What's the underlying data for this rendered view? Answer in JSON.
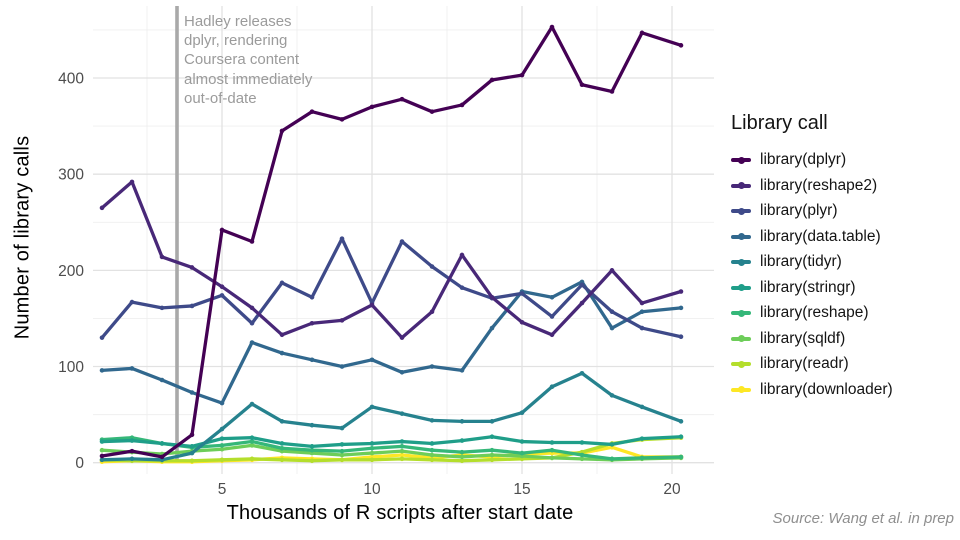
{
  "y_axis": {
    "title": "Number of library calls",
    "ticks": [
      0,
      100,
      200,
      300,
      400
    ]
  },
  "x_axis": {
    "title": "Thousands of R scripts after start date",
    "ticks": [
      5,
      10,
      15,
      20
    ]
  },
  "legend": {
    "title": "Library call",
    "position": "right"
  },
  "annotation": {
    "text": "Hadley releases\ndplyr, rendering\nCoursera content\nalmost immediately\nout-of-date",
    "x": 3.5,
    "line_color": "#a9a9a9",
    "text_color": "#9b9b9b"
  },
  "source": {
    "text": "Source: Wang et al. in prep"
  },
  "chart_data": {
    "type": "line",
    "title": "",
    "xlabel": "Thousands of R scripts after start date",
    "ylabel": "Number of library calls",
    "xlim": [
      0.7,
      21.4
    ],
    "ylim": [
      -12,
      475
    ],
    "grid": true,
    "legend_position": "right",
    "annotation_line_x": 3.5,
    "x": [
      1,
      2,
      3,
      4,
      5,
      6,
      7,
      8,
      9,
      10,
      11,
      12,
      13,
      14,
      15,
      16,
      17,
      18,
      19,
      20.3
    ],
    "series": [
      {
        "name": "library(dplyr)",
        "color": "#440154",
        "values": [
          7,
          12,
          6,
          29,
          242,
          230,
          345,
          365,
          357,
          370,
          378,
          365,
          372,
          398,
          403,
          453,
          393,
          386,
          447,
          434
        ]
      },
      {
        "name": "library(reshape2)",
        "color": "#482878",
        "values": [
          265,
          292,
          214,
          203,
          183,
          161,
          133,
          145,
          148,
          164,
          130,
          157,
          216,
          172,
          146,
          133,
          166,
          200,
          166,
          178
        ]
      },
      {
        "name": "library(plyr)",
        "color": "#3e4a89",
        "values": [
          130,
          167,
          161,
          163,
          174,
          145,
          187,
          172,
          233,
          166,
          230,
          204,
          182,
          171,
          176,
          152,
          185,
          157,
          140,
          131
        ]
      },
      {
        "name": "library(data.table)",
        "color": "#31688e",
        "values": [
          96,
          98,
          86,
          73,
          62,
          125,
          114,
          107,
          100,
          107,
          94,
          100,
          96,
          140,
          178,
          172,
          188,
          140,
          157,
          161
        ]
      },
      {
        "name": "library(tidyr)",
        "color": "#26828e",
        "values": [
          3,
          4,
          3,
          10,
          35,
          61,
          43,
          39,
          36,
          58,
          51,
          44,
          43,
          43,
          52,
          79,
          93,
          70,
          58,
          43
        ]
      },
      {
        "name": "library(stringr)",
        "color": "#1f9e89",
        "values": [
          22,
          23,
          20,
          17,
          25,
          26,
          20,
          17,
          19,
          20,
          22,
          20,
          23,
          27,
          22,
          21,
          21,
          19,
          25,
          27
        ]
      },
      {
        "name": "library(reshape)",
        "color": "#35b779",
        "values": [
          24,
          26,
          20,
          16,
          18,
          22,
          15,
          13,
          12,
          15,
          17,
          13,
          11,
          13,
          10,
          13,
          8,
          4,
          5,
          6
        ]
      },
      {
        "name": "library(sqldf)",
        "color": "#6dcd59",
        "values": [
          13,
          11,
          9,
          12,
          14,
          18,
          12,
          10,
          8,
          10,
          12,
          8,
          6,
          8,
          7,
          5,
          4,
          3,
          4,
          5
        ]
      },
      {
        "name": "library(readr)",
        "color": "#b4de2c",
        "values": [
          3,
          2,
          2,
          2,
          3,
          4,
          3,
          2,
          3,
          3,
          4,
          3,
          2,
          3,
          4,
          5,
          11,
          20,
          24,
          26
        ]
      },
      {
        "name": "library(downloader)",
        "color": "#fde725",
        "values": [
          1,
          2,
          1,
          1,
          2,
          3,
          5,
          4,
          3,
          6,
          8,
          5,
          8,
          6,
          9,
          10,
          10,
          16,
          6,
          6
        ]
      }
    ]
  }
}
